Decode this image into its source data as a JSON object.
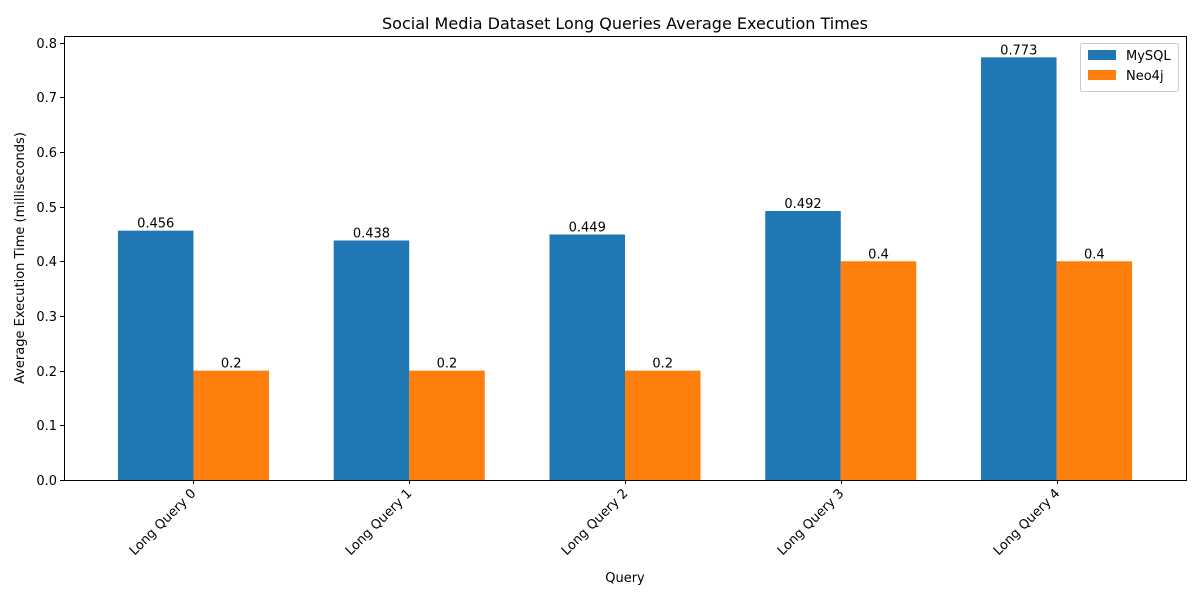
{
  "chart_data": {
    "type": "bar",
    "title": "Social Media Dataset Long Queries Average Execution Times",
    "xlabel": "Query",
    "ylabel": "Average Execution Time (milliseconds)",
    "categories": [
      "Long Query 0",
      "Long Query 1",
      "Long Query 2",
      "Long Query 3",
      "Long Query 4"
    ],
    "series": [
      {
        "name": "MySQL",
        "values": [
          0.456,
          0.438,
          0.449,
          0.492,
          0.773
        ],
        "labels": [
          "0.456",
          "0.438",
          "0.449",
          "0.492",
          "0.773"
        ],
        "color": "#1f77b4"
      },
      {
        "name": "Neo4j",
        "values": [
          0.2,
          0.2,
          0.2,
          0.4,
          0.4
        ],
        "labels": [
          "0.2",
          "0.2",
          "0.2",
          "0.4",
          "0.4"
        ],
        "color": "#ff7f0e"
      }
    ],
    "ylim": [
      0,
      0.812
    ],
    "yticks": [
      0.0,
      0.1,
      0.2,
      0.3,
      0.4,
      0.5,
      0.6,
      0.7,
      0.8
    ],
    "ytick_labels": [
      "0.0",
      "0.1",
      "0.2",
      "0.3",
      "0.4",
      "0.5",
      "0.6",
      "0.7",
      "0.8"
    ],
    "grid": false,
    "legend_position": "top-right",
    "xtick_rotation": "45 degrees"
  }
}
